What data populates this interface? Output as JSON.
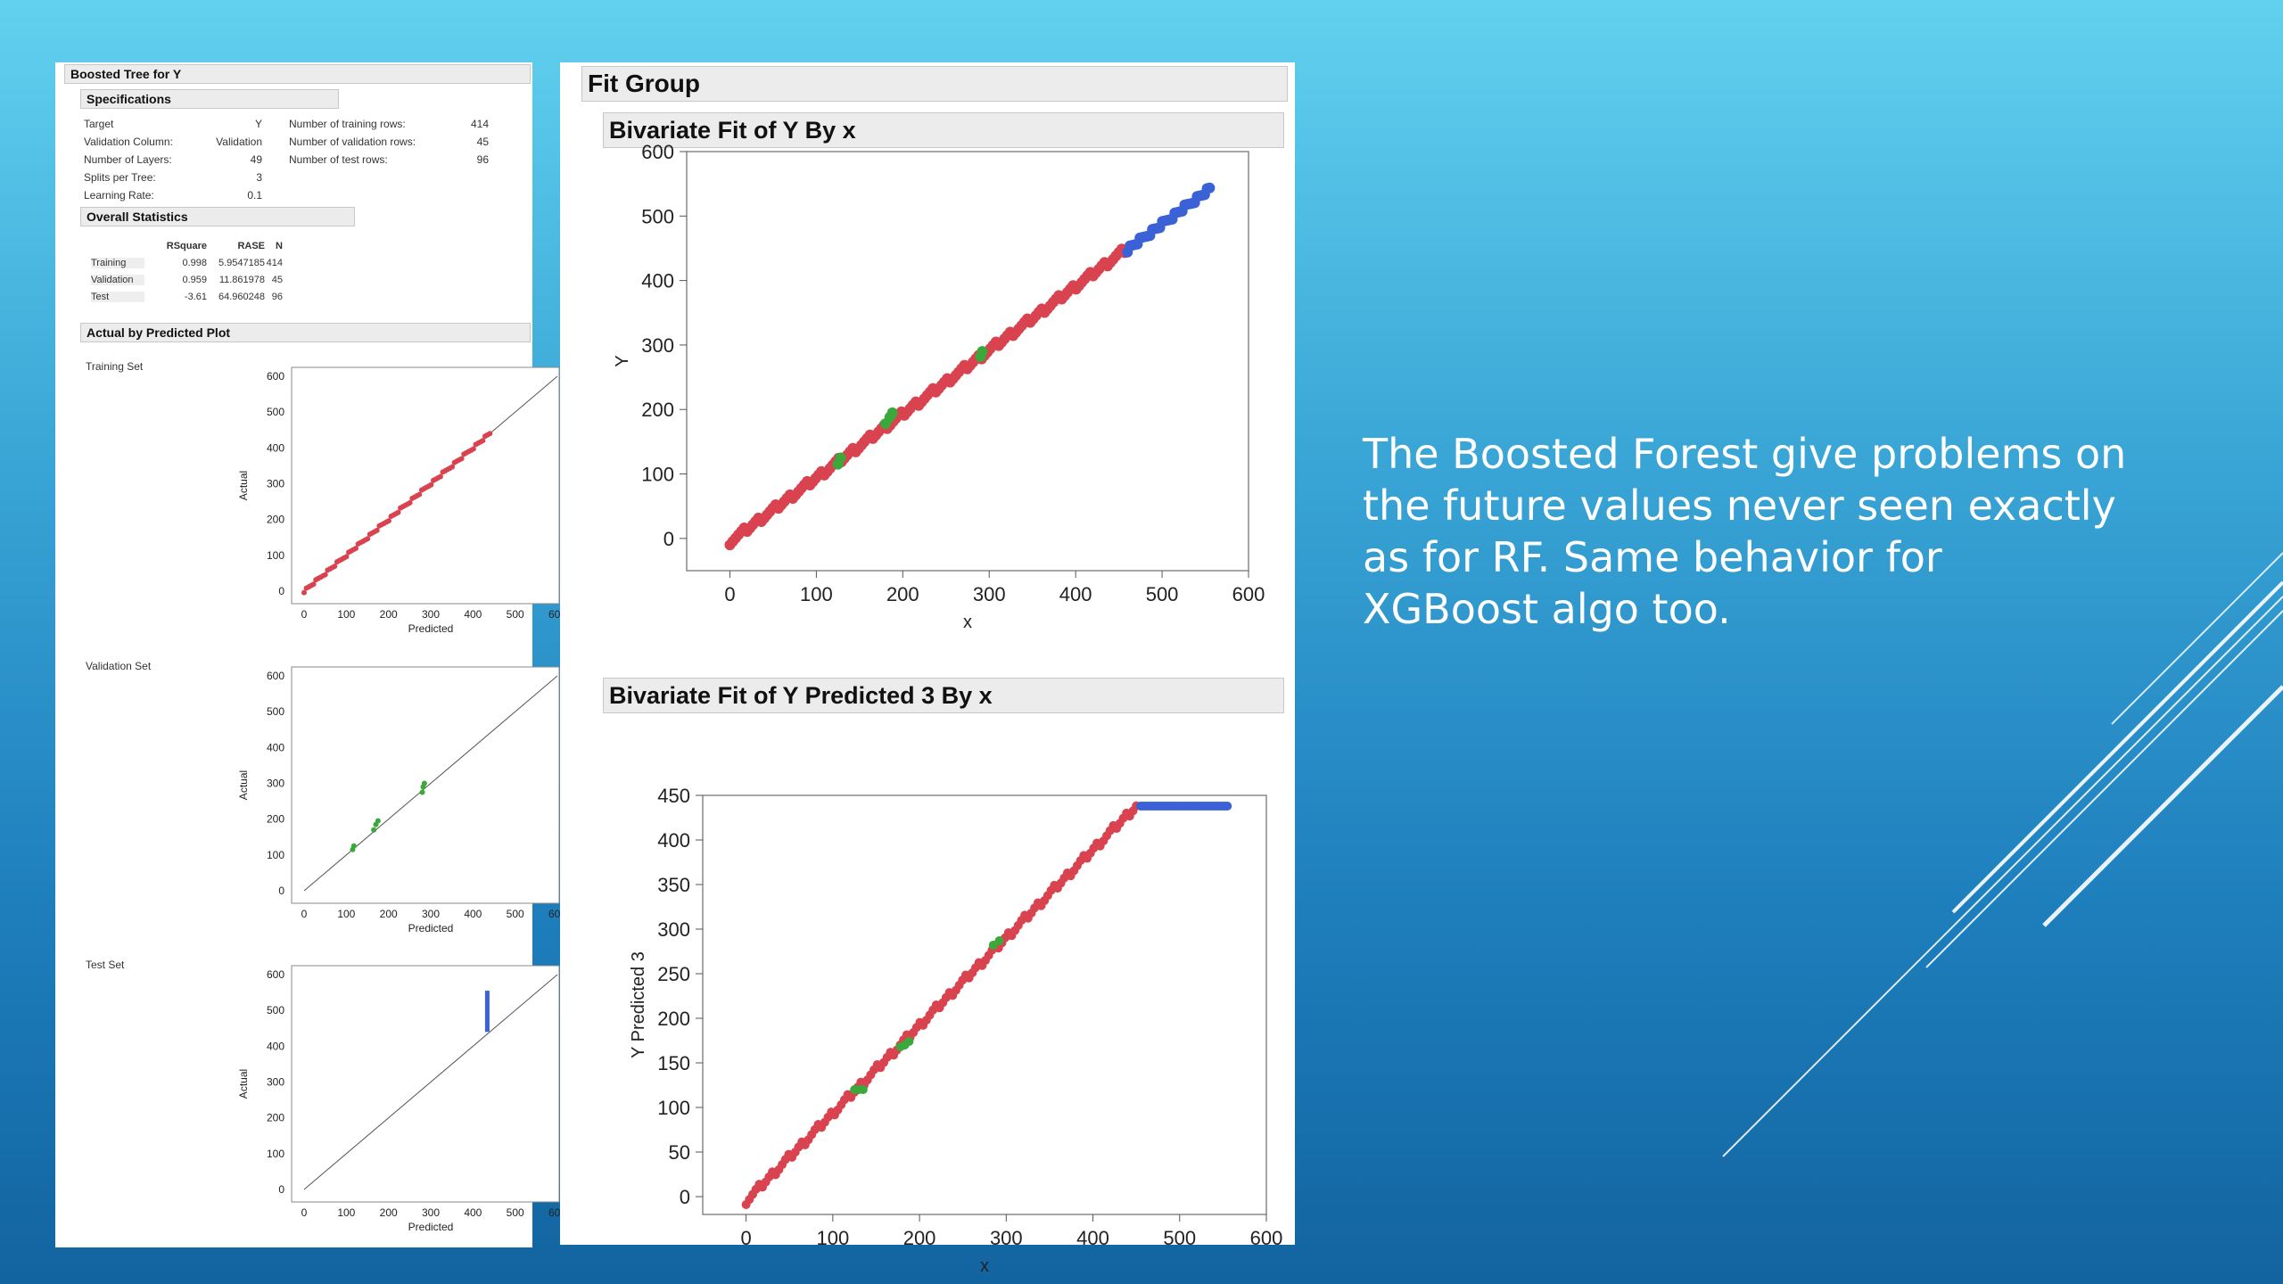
{
  "left_panel": {
    "title": "Boosted Tree for Y",
    "specifications": {
      "header": "Specifications",
      "left_rows": [
        {
          "label": "Target",
          "value": "Y"
        },
        {
          "label": "Validation Column:",
          "value": "Validation"
        },
        {
          "label": "Number of Layers:",
          "value": "49"
        },
        {
          "label": "Splits per Tree:",
          "value": "3"
        },
        {
          "label": "Learning Rate:",
          "value": "0.1"
        }
      ],
      "right_rows": [
        {
          "label": "Number of training rows:",
          "value": "414"
        },
        {
          "label": "Number of validation rows:",
          "value": "45"
        },
        {
          "label": "Number of test rows:",
          "value": "96"
        }
      ]
    },
    "overall_statistics": {
      "header": "Overall Statistics",
      "columns": [
        "",
        "RSquare",
        "RASE",
        "N"
      ],
      "rows": [
        [
          "Training",
          "0.998",
          "5.9547185",
          "414"
        ],
        [
          "Validation",
          "0.959",
          "11.861978",
          "45"
        ],
        [
          "Test",
          "-3.61",
          "64.960248",
          "96"
        ]
      ]
    },
    "actual_by_predicted": {
      "header": "Actual by Predicted Plot",
      "plots": [
        {
          "set_label": "Training Set",
          "xlabel": "Predicted",
          "ylabel": "Actual",
          "ticks": [
            "0",
            "100",
            "200",
            "300",
            "400",
            "500",
            "600"
          ],
          "color": "#c8323a"
        },
        {
          "set_label": "Validation Set",
          "xlabel": "Predicted",
          "ylabel": "Actual",
          "ticks": [
            "0",
            "100",
            "200",
            "300",
            "400",
            "500",
            "600"
          ],
          "color": "#2e9a2e"
        },
        {
          "set_label": "Test Set",
          "xlabel": "Predicted",
          "ylabel": "Actual",
          "ticks": [
            "0",
            "100",
            "200",
            "300",
            "400",
            "500",
            "600"
          ],
          "color": "#3a62d6"
        }
      ]
    }
  },
  "right_panel": {
    "title": "Fit Group",
    "plot1_title": "Bivariate Fit of Y By x",
    "plot2_title": "Bivariate Fit of Y Predicted 3 By x"
  },
  "slide_text": "The Boosted Forest give problems on the future values never seen exactly as for RF. Same behavior for XGBoost algo too.",
  "colors": {
    "train": "#d9434f",
    "validation": "#3aa83a",
    "test": "#3a62d6"
  },
  "chart_data": [
    {
      "type": "scatter",
      "title": "Bivariate Fit of Y By x",
      "xlabel": "x",
      "ylabel": "Y",
      "xlim": [
        -50,
        600
      ],
      "ylim": [
        -50,
        600
      ],
      "xticks": [
        "0",
        "100",
        "200",
        "300",
        "400",
        "500",
        "600"
      ],
      "yticks": [
        "0",
        "100",
        "200",
        "300",
        "400",
        "500",
        "600"
      ],
      "series": [
        {
          "points": [
            [
              0,
              -5
            ],
            [
              460,
              450
            ]
          ],
          "color": "#d9434f"
        },
        {
          "points": [
            [
              130,
              120
            ],
            [
              190,
              185
            ],
            [
              290,
              285
            ]
          ],
          "color": "#3aa83a"
        },
        {
          "points": [
            [
              460,
              450
            ],
            [
              555,
              545
            ]
          ],
          "color": "#3a62d6"
        }
      ]
    },
    {
      "type": "scatter",
      "title": "Bivariate Fit of Y Predicted 3 By x",
      "xlabel": "x",
      "ylabel": "Y Predicted 3",
      "xlim": [
        -50,
        600
      ],
      "ylim": [
        -20,
        450
      ],
      "xticks": [
        "0",
        "100",
        "200",
        "300",
        "400",
        "500",
        "600"
      ],
      "yticks": [
        "0",
        "50",
        "100",
        "150",
        "200",
        "250",
        "300",
        "350",
        "400",
        "450"
      ],
      "series": [
        {
          "points": [
            [
              0,
              -5
            ],
            [
              450,
              438
            ]
          ],
          "color": "#d9434f"
        },
        {
          "points": [
            [
              130,
              120
            ],
            [
              185,
              175
            ],
            [
              290,
              282
            ]
          ],
          "color": "#3aa83a"
        },
        {
          "points": [
            [
              455,
              438
            ],
            [
              555,
              438
            ]
          ],
          "color": "#3a62d6"
        }
      ]
    }
  ]
}
